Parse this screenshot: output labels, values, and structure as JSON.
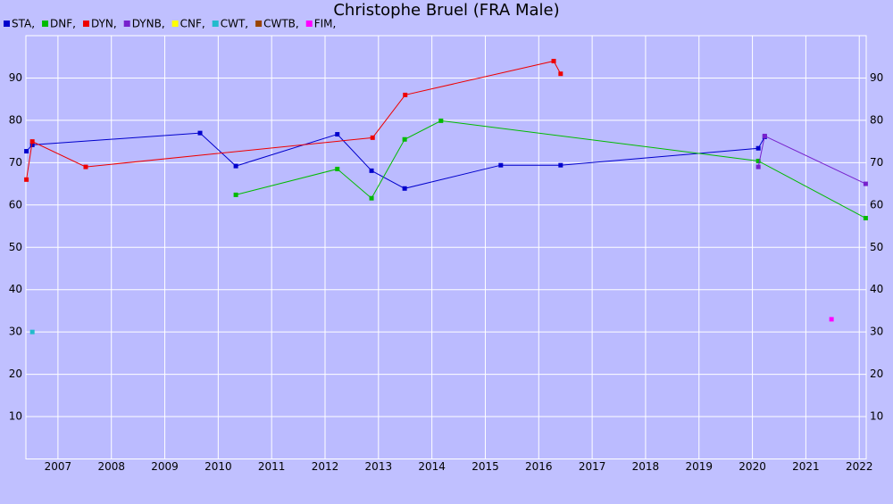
{
  "chart_data": {
    "type": "line",
    "title": "Christophe Bruel (FRA Male)",
    "xlim": [
      2006.4,
      2022.13
    ],
    "ylim": [
      0,
      100
    ],
    "xticks": [
      2007,
      2008,
      2009,
      2010,
      2011,
      2012,
      2013,
      2014,
      2015,
      2016,
      2017,
      2018,
      2019,
      2020,
      2021,
      2022
    ],
    "yticks": [
      10,
      20,
      30,
      40,
      50,
      60,
      70,
      80,
      90
    ],
    "grid": true,
    "series": [
      {
        "name": "STA,",
        "color": "#0000cc",
        "x": [
          2006.41,
          2006.52,
          2009.66,
          2010.33,
          2012.23,
          2012.87,
          2013.49,
          2015.29,
          2016.41,
          2020.11,
          2020.23
        ],
        "values": [
          72.7,
          74.2,
          77,
          69.2,
          76.7,
          68.1,
          63.9,
          69.4,
          69.4,
          73.4,
          76.1
        ]
      },
      {
        "name": "DNF,",
        "color": "#00bb00",
        "x": [
          2010.33,
          2012.23,
          2012.87,
          2013.49,
          2014.17,
          2020.11,
          2022.12
        ],
        "values": [
          62.4,
          68.5,
          61.6,
          75.5,
          79.9,
          70.4,
          56.9
        ]
      },
      {
        "name": "DYN,",
        "color": "#ee0000",
        "x": [
          2006.41,
          2006.52,
          2007.52,
          2012.89,
          2013.5,
          2016.28,
          2016.41
        ],
        "values": [
          66,
          75,
          69,
          75.9,
          86,
          94,
          91
        ]
      },
      {
        "name": "DYNB,",
        "color": "#7722cc",
        "x": [
          2020.11,
          2020.23,
          2022.12
        ],
        "values": [
          69,
          76.3,
          65
        ]
      },
      {
        "name": "CNF,",
        "color": "#ffff00",
        "x": [],
        "values": []
      },
      {
        "name": "CWT,",
        "color": "#22bbcc",
        "x": [
          2006.52
        ],
        "values": [
          30
        ]
      },
      {
        "name": "CWTB,",
        "color": "#994400",
        "x": [],
        "values": []
      },
      {
        "name": "FIM,",
        "color": "#ff00ff",
        "x": [
          2021.48
        ],
        "values": [
          33
        ]
      }
    ]
  }
}
